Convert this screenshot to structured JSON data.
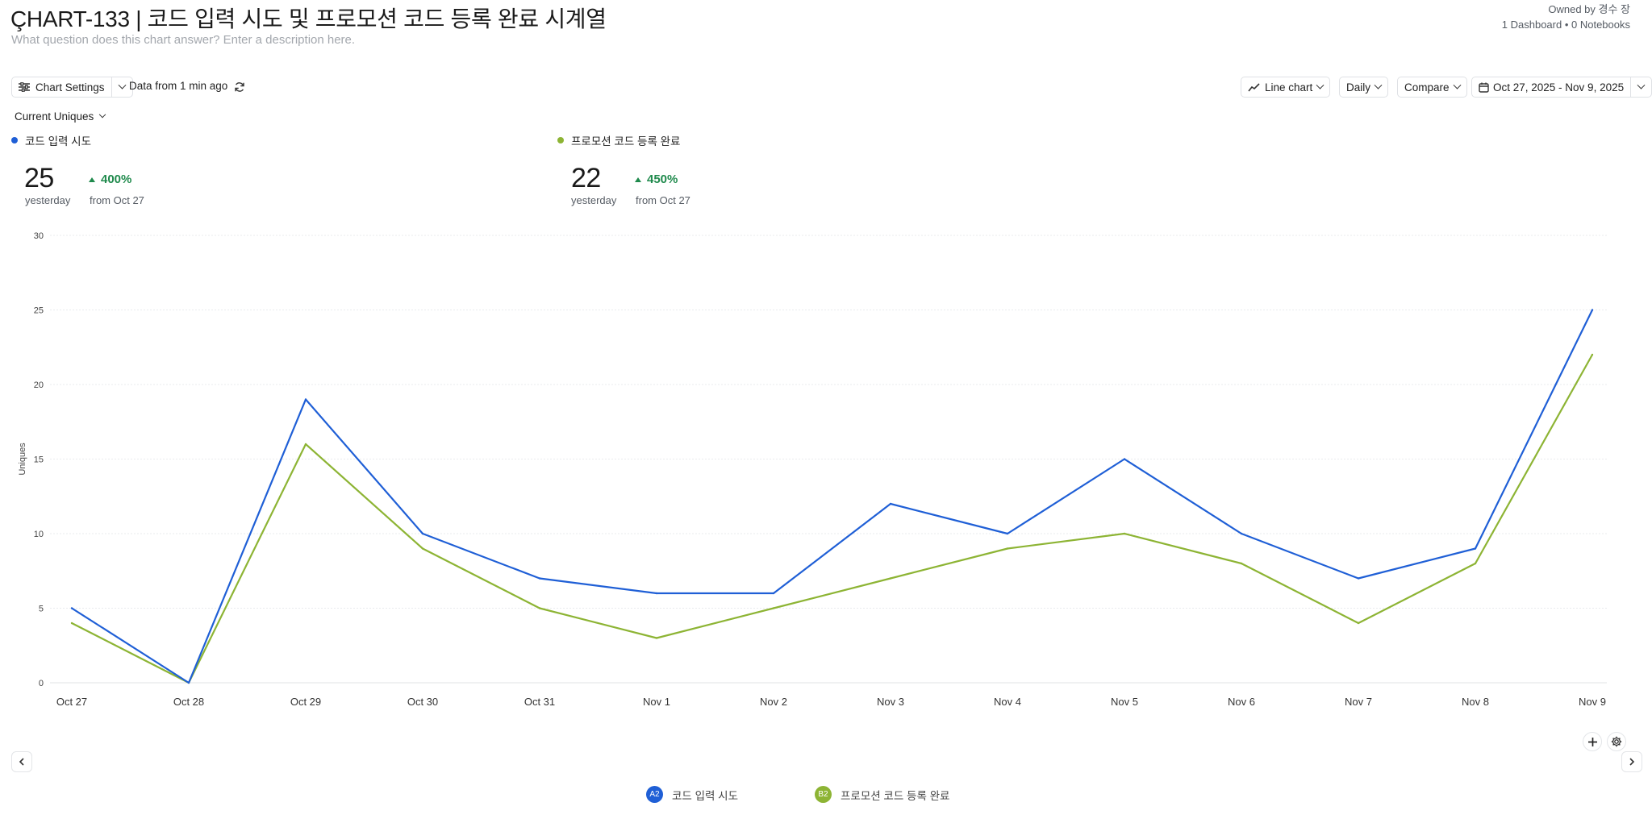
{
  "header": {
    "title": "ÇHART-133 | 코드 입력 시도 및 프로모션 코드 등록 완료 시계열",
    "description_placeholder": "What question does this chart answer? Enter a description here.",
    "owner": "Owned by 경수 장",
    "usage": "1 Dashboard • 0 Notebooks"
  },
  "toolbar": {
    "chart_settings": "Chart Settings",
    "data_freshness": "Data from 1 min ago",
    "chart_type": "Line chart",
    "interval": "Daily",
    "compare": "Compare",
    "date_range": "Oct 27, 2025 - Nov 9, 2025"
  },
  "metric_selector": "Current Uniques",
  "summary": [
    {
      "name": "코드 입력 시도",
      "color": "#1f5fd6",
      "value": "25",
      "period": "yesterday",
      "change": "400%",
      "from": "from Oct 27"
    },
    {
      "name": "프로모션 코드 등록 완료",
      "color": "#8db434",
      "value": "22",
      "period": "yesterday",
      "change": "450%",
      "from": "from Oct 27"
    }
  ],
  "legend": [
    {
      "badge": "A2",
      "label": "코드 입력 시도",
      "color": "#1f5fd6"
    },
    {
      "badge": "B2",
      "label": "프로모션 코드 등록 완료",
      "color": "#8db434"
    }
  ],
  "icons": {
    "settings": "sliders-icon",
    "refresh": "refresh-icon",
    "line": "line-chart-icon",
    "calendar": "calendar-icon",
    "add": "plus-icon",
    "gear": "gear-icon",
    "prev": "chevron-left-icon",
    "next": "chevron-right-icon"
  },
  "chart_data": {
    "type": "line",
    "ylabel": "Uniques",
    "xlabel": "",
    "ylim": [
      0,
      30
    ],
    "yticks": [
      0,
      5,
      10,
      15,
      20,
      25,
      30
    ],
    "grid": true,
    "categories": [
      "Oct 27",
      "Oct 28",
      "Oct 29",
      "Oct 30",
      "Oct 31",
      "Nov 1",
      "Nov 2",
      "Nov 3",
      "Nov 4",
      "Nov 5",
      "Nov 6",
      "Nov 7",
      "Nov 8",
      "Nov 9"
    ],
    "series": [
      {
        "name": "코드 입력 시도",
        "color": "#1f5fd6",
        "values": [
          5,
          0,
          19,
          10,
          7,
          6,
          6,
          12,
          10,
          15,
          10,
          7,
          9,
          25
        ]
      },
      {
        "name": "프로모션 코드 등록 완료",
        "color": "#8db434",
        "values": [
          4,
          0,
          16,
          9,
          5,
          3,
          5,
          7,
          9,
          10,
          8,
          4,
          8,
          22
        ]
      }
    ]
  }
}
